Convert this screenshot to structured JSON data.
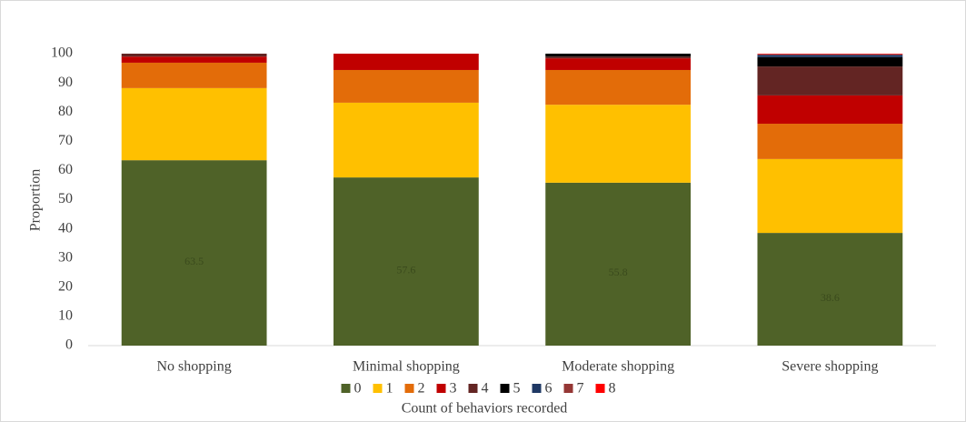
{
  "chart_data": {
    "type": "stacked_bar",
    "x_label": "Count of behaviors recorded",
    "y_label": "Proportion",
    "categories": [
      "No shopping",
      "Minimal shopping",
      "Moderate shopping",
      "Severe shopping"
    ],
    "ylim": [
      0,
      100
    ],
    "yticks": [
      0,
      10,
      20,
      30,
      40,
      50,
      60,
      70,
      80,
      90,
      100
    ],
    "grid": false,
    "legend": "bottom",
    "series": [
      {
        "name": "0",
        "color": "#4f6228",
        "values": [
          63.5,
          57.6,
          55.8,
          38.6
        ],
        "labels": true
      },
      {
        "name": "1",
        "color": "#ffc000",
        "values": [
          24.7,
          25.6,
          26.7,
          25.3
        ]
      },
      {
        "name": "2",
        "color": "#e36c09",
        "values": [
          8.7,
          11.2,
          11.9,
          12.1
        ]
      },
      {
        "name": "3",
        "color": "#c00000",
        "values": [
          2.1,
          5.6,
          4.0,
          9.7
        ]
      },
      {
        "name": "4",
        "color": "#632523",
        "values": [
          1.0,
          0,
          0.6,
          9.9
        ]
      },
      {
        "name": "5",
        "color": "#000000",
        "values": [
          0,
          0,
          1.0,
          3.2
        ]
      },
      {
        "name": "6",
        "color": "#1f3864",
        "values": [
          0,
          0,
          0,
          0.8
        ]
      },
      {
        "name": "7",
        "color": "#953735",
        "values": [
          0,
          0,
          0,
          0.2
        ]
      },
      {
        "name": "8",
        "color": "#ff0000",
        "values": [
          0,
          0,
          0,
          0.2
        ]
      }
    ]
  }
}
